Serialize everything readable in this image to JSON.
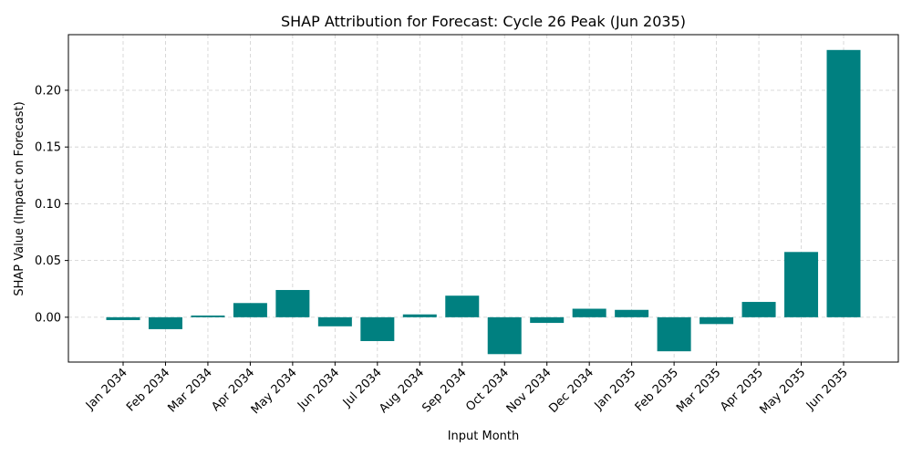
{
  "chart_data": {
    "type": "bar",
    "title": "SHAP Attribution for Forecast: Cycle 26 Peak (Jun 2035)",
    "xlabel": "Input Month",
    "ylabel": "SHAP Value (Impact on Forecast)",
    "categories": [
      "Jan 2034",
      "Feb 2034",
      "Mar 2034",
      "Apr 2034",
      "May 2034",
      "Jun 2034",
      "Jul 2034",
      "Aug 2034",
      "Sep 2034",
      "Oct 2034",
      "Nov 2034",
      "Dec 2034",
      "Jan 2035",
      "Feb 2035",
      "Mar 2035",
      "Apr 2035",
      "May 2035",
      "Jun 2035"
    ],
    "values": [
      -0.0025,
      -0.0105,
      0.0015,
      0.0125,
      0.024,
      -0.008,
      -0.021,
      0.0025,
      0.019,
      -0.0325,
      -0.005,
      0.0075,
      0.0065,
      -0.03,
      -0.006,
      0.0135,
      0.0575,
      0.2355
    ],
    "ylim": [
      -0.0395,
      0.249
    ],
    "yticks": [
      0.0,
      0.05,
      0.1,
      0.15,
      0.2
    ],
    "ytick_labels": [
      "0.00",
      "0.05",
      "0.10",
      "0.15",
      "0.20"
    ],
    "grid": true,
    "bar_color": "#008080"
  }
}
